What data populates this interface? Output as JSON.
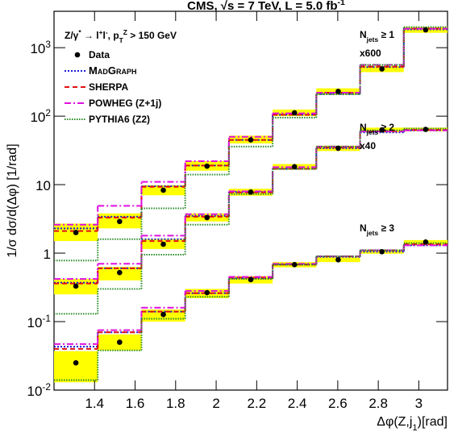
{
  "chart_data": {
    "type": "histogram",
    "title": [
      {
        "t": "CMS, √s = 7 TeV, L = 5.0 fb",
        "s": ""
      },
      {
        "t": "-1",
        "s": "sup"
      }
    ],
    "annotation": [
      {
        "t": "Z/γ",
        "s": ""
      },
      {
        "t": "*",
        "s": "sup"
      },
      {
        "t": " → l",
        "s": ""
      },
      {
        "t": "+",
        "s": "sup"
      },
      {
        "t": "l",
        "s": ""
      },
      {
        "t": "-",
        "s": "sup"
      },
      {
        "t": ", p",
        "s": ""
      },
      {
        "t": "T",
        "s": "sub"
      },
      {
        "t": "Z",
        "s": "sup"
      },
      {
        "t": " > 150 GeV",
        "s": ""
      }
    ],
    "x_label": [
      {
        "t": "Δφ(Z,j",
        "s": ""
      },
      {
        "t": "1",
        "s": "sub"
      },
      {
        "t": ")[rad]",
        "s": ""
      }
    ],
    "y_label": "1/σ dσ/d(Δφ) [1/rad]",
    "bins": [
      1.2,
      1.4157,
      1.6315,
      1.8472,
      2.0629,
      2.2787,
      2.4944,
      2.7101,
      2.9259,
      3.1416
    ],
    "xlim": [
      1.2,
      3.1416
    ],
    "xticks": [
      1.4,
      1.6,
      1.8,
      2,
      2.2,
      2.4,
      2.6,
      2.8,
      3
    ],
    "ylim": [
      0.01,
      3400
    ],
    "log_y": true,
    "yticks": [
      {
        "value": 0.01,
        "label": "10",
        "sup": "-2"
      },
      {
        "value": 0.1,
        "label": "10",
        "sup": "-1"
      },
      1,
      10,
      {
        "value": 100,
        "label": "10",
        "sup": "2"
      },
      {
        "value": 1000,
        "label": "10",
        "sup": "3"
      }
    ],
    "data_name": "Data",
    "data_color": "#000000",
    "band_color": "#ffff00",
    "series": [
      {
        "name": "MadGraph",
        "color": "#1a1ad6",
        "dash": "2,2"
      },
      {
        "name": "SHERPA",
        "color": "#e01010",
        "dash": "6,4"
      },
      {
        "name": "POWHEG (Z+1j)",
        "color": "#e010e0",
        "dash": "8,3,2,3"
      },
      {
        "name": "PYTHIA6 (Z2)",
        "color": "#2a8a2a",
        "dash": "1.5,1.5"
      }
    ],
    "groups": [
      {
        "label": [
          {
            "t": "N",
            "s": ""
          },
          {
            "t": "jets",
            "s": "sub"
          },
          {
            "t": " ≥ 1",
            "s": ""
          }
        ],
        "factor": "x600",
        "data": [
          2.0,
          2.9,
          8.3,
          18.6,
          45,
          112,
          230,
          490,
          1820
        ],
        "band": [
          [
            1.5,
            2.7
          ],
          [
            2.3,
            3.8
          ],
          [
            7,
            9.8
          ],
          [
            16,
            22
          ],
          [
            40,
            52
          ],
          [
            100,
            125
          ],
          [
            205,
            255
          ],
          [
            440,
            540
          ],
          [
            1650,
            2000
          ]
        ],
        "models": [
          [
            2.3,
            3.4,
            9.5,
            19,
            45,
            105,
            210,
            520,
            1850
          ],
          [
            2.1,
            3.3,
            9.3,
            19,
            45,
            105,
            220,
            530,
            1900
          ],
          [
            2.6,
            4.9,
            11,
            22,
            50,
            110,
            220,
            560,
            1900
          ],
          [
            0.78,
            1.6,
            4.5,
            14,
            36,
            95,
            210,
            560,
            2000
          ]
        ]
      },
      {
        "label": [
          {
            "t": "N",
            "s": ""
          },
          {
            "t": "jets",
            "s": "sub"
          },
          {
            "t": " ≥ 2",
            "s": ""
          }
        ],
        "factor": "x40",
        "data": [
          0.33,
          0.52,
          1.35,
          3.3,
          7.8,
          18.3,
          34,
          63,
          64
        ],
        "band": [
          [
            0.25,
            0.42
          ],
          [
            0.4,
            0.63
          ],
          [
            1.15,
            1.6
          ],
          [
            2.9,
            3.8
          ],
          [
            6.9,
            8.7
          ],
          [
            16.5,
            20
          ],
          [
            31,
            37
          ],
          [
            58,
            68
          ],
          [
            60,
            68
          ]
        ],
        "models": [
          [
            0.37,
            0.6,
            1.6,
            3.5,
            7.8,
            17,
            34,
            58,
            62
          ],
          [
            0.36,
            0.6,
            1.5,
            3.4,
            7.7,
            17,
            35,
            60,
            63
          ],
          [
            0.42,
            0.7,
            1.8,
            3.7,
            8.0,
            18,
            36,
            60,
            62
          ],
          [
            0.13,
            0.3,
            0.95,
            2.6,
            7.3,
            17,
            36,
            62,
            66
          ]
        ]
      },
      {
        "label": [
          {
            "t": "N",
            "s": ""
          },
          {
            "t": "jets",
            "s": "sub"
          },
          {
            "t": " ≥ 3",
            "s": ""
          }
        ],
        "factor": null,
        "data": [
          0.025,
          0.05,
          0.127,
          0.265,
          0.41,
          0.68,
          0.8,
          1.05,
          1.45
        ],
        "band": [
          [
            0.013,
            0.037
          ],
          [
            0.038,
            0.065
          ],
          [
            0.1,
            0.15
          ],
          [
            0.22,
            0.3
          ],
          [
            0.36,
            0.46
          ],
          [
            0.62,
            0.74
          ],
          [
            0.74,
            0.87
          ],
          [
            0.98,
            1.12
          ],
          [
            1.3,
            1.55
          ]
        ],
        "models": [
          [
            0.043,
            0.07,
            0.14,
            0.26,
            0.43,
            0.68,
            0.88,
            1.05,
            1.3
          ],
          [
            0.04,
            0.07,
            0.14,
            0.26,
            0.44,
            0.68,
            0.9,
            1.1,
            1.35
          ],
          [
            0.047,
            0.075,
            0.16,
            0.28,
            0.45,
            0.7,
            0.9,
            1.1,
            1.3
          ],
          [
            0.014,
            0.038,
            0.11,
            0.23,
            0.42,
            0.68,
            0.9,
            1.1,
            1.4
          ]
        ]
      }
    ]
  }
}
